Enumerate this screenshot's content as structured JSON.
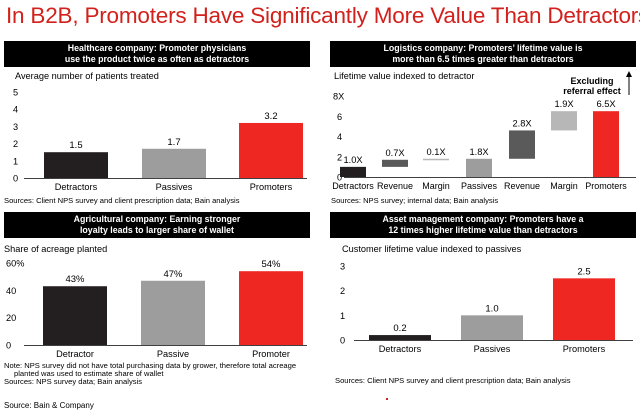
{
  "page": {
    "title": "In B2B, Promoters Have Significantly More Value Than Detractors",
    "footer": "Source: Bain & Company"
  },
  "panels": {
    "healthcare": {
      "header_line1": "Healthcare company: Promoter physicians",
      "header_line2": "use the product twice as often as detractors",
      "source": "Sources: Client NPS survey and client prescription data; Bain analysis"
    },
    "logistics": {
      "header_line1": "Logistics company: Promoters’ lifetime value is",
      "header_line2": "more than 6.5 times greater than detractors",
      "source": "Sources: NPS survey; internal data; Bain analysis",
      "annotation_line1": "Excluding",
      "annotation_line2": "referral effect"
    },
    "agricultural": {
      "header_line1": "Agricultural company: Earning stronger",
      "header_line2": "loyalty leads to larger share of wallet",
      "note_line1": "Note: NPS survey did not have total purchasing data by grower, therefore total acreage",
      "note_line2": "planted was used to estimate share of wallet",
      "source": "Sources: NPS survey data; Bain analysis"
    },
    "asset": {
      "header_line1": "Asset management company: Promoters have a",
      "header_line2": "12 times higher lifetime value than detractors",
      "source": "Sources: Client NPS survey and client prescription data; Bain analysis"
    }
  },
  "colors": {
    "title_red": "#d2211c",
    "detractor": "#231f20",
    "passive": "#9d9d9d",
    "promoter": "#ee2722",
    "neutral_dark": "#5a5a5a",
    "neutral_light": "#b7b7b7"
  },
  "chart_data": [
    {
      "type": "bar",
      "title": "Healthcare company: Promoter physicians use the product twice as often as detractors",
      "ylabel": "Average number of patients treated",
      "categories": [
        "Detractors",
        "Passives",
        "Promoters"
      ],
      "values": [
        1.5,
        1.7,
        3.2
      ],
      "value_labels": [
        "1.5",
        "1.7",
        "3.2"
      ],
      "yticks": [
        "0",
        "1",
        "2",
        "3",
        "4",
        "5"
      ],
      "ylim": [
        0,
        5
      ]
    },
    {
      "type": "bar",
      "subtype": "waterfall",
      "title": "Logistics company: Promoters’ lifetime value is more than 6.5 times greater than detractors",
      "ylabel": "Lifetime value indexed to detractor",
      "categories": [
        "Detractors",
        "Revenue",
        "Margin",
        "Passives",
        "Revenue",
        "Margin",
        "Promoters"
      ],
      "values": [
        1.0,
        0.7,
        0.1,
        1.8,
        2.8,
        1.9,
        6.5
      ],
      "value_labels": [
        "1.0X",
        "0.7X",
        "0.1X",
        "1.8X",
        "2.8X",
        "1.9X",
        "6.5X"
      ],
      "kinds": [
        "total",
        "delta",
        "delta",
        "total",
        "delta",
        "delta",
        "total"
      ],
      "yticks": [
        "0",
        "2",
        "4",
        "6",
        "8X"
      ],
      "ylim": [
        0,
        8
      ]
    },
    {
      "type": "bar",
      "title": "Agricultural company: Earning stronger loyalty leads to larger share of wallet",
      "ylabel": "Share of acreage planted",
      "categories": [
        "Detractor",
        "Passive",
        "Promoter"
      ],
      "values": [
        43,
        47,
        54
      ],
      "value_labels": [
        "43%",
        "47%",
        "54%"
      ],
      "yticks": [
        "0",
        "20",
        "40",
        "60%"
      ],
      "ylim": [
        0,
        60
      ]
    },
    {
      "type": "bar",
      "title": "Asset management company: Promoters have a 12 times higher lifetime value than detractors",
      "ylabel": "Customer lifetime value indexed to passives",
      "categories": [
        "Detractors",
        "Passives",
        "Promoters"
      ],
      "values": [
        0.2,
        1.0,
        2.5
      ],
      "value_labels": [
        "0.2",
        "1.0",
        "2.5"
      ],
      "yticks": [
        "0",
        "1",
        "2",
        "3"
      ],
      "ylim": [
        0,
        3
      ]
    }
  ]
}
